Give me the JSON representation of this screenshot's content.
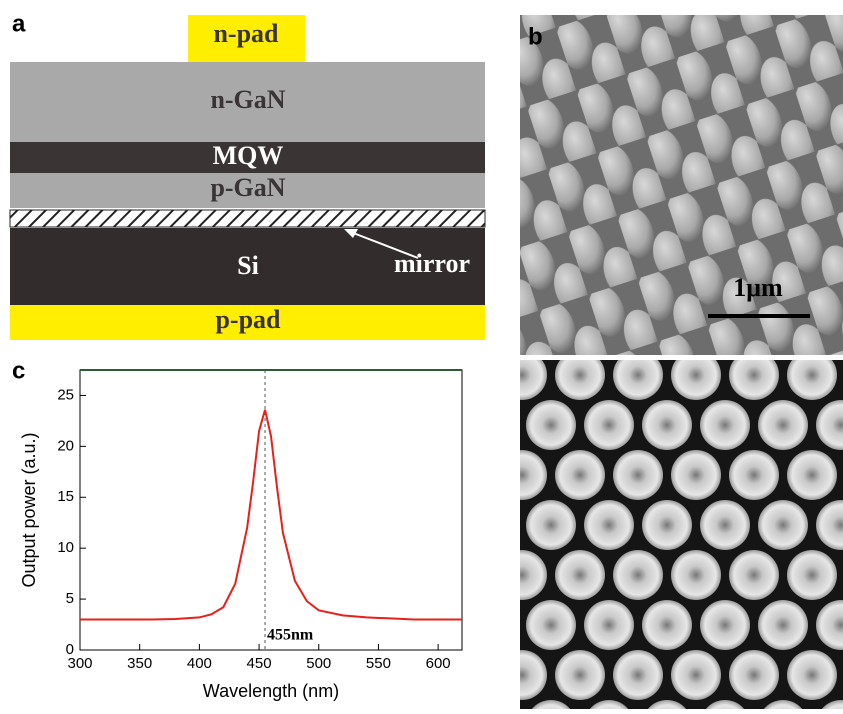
{
  "panel_labels": [
    "a",
    "b",
    "c"
  ],
  "diagram": {
    "layers": [
      "n-pad",
      "n-GaN",
      "MQW",
      "p-GaN",
      "Si",
      "p-pad"
    ],
    "mirror_label": "mirror"
  },
  "sem": {
    "scale_label": "1μm"
  },
  "chart_data": {
    "type": "line",
    "xlabel": "Wavelength (nm)",
    "ylabel": "Output power (a.u.)",
    "x": [
      300,
      320,
      340,
      360,
      380,
      400,
      410,
      420,
      430,
      440,
      445,
      450,
      455,
      460,
      465,
      470,
      480,
      490,
      500,
      520,
      540,
      560,
      580,
      600,
      620
    ],
    "values": [
      3.0,
      3.0,
      3.0,
      3.0,
      3.05,
      3.2,
      3.5,
      4.2,
      6.5,
      12,
      16.5,
      21.5,
      23.6,
      21,
      16,
      11.5,
      6.8,
      4.8,
      3.9,
      3.4,
      3.2,
      3.1,
      3.0,
      3.0,
      3.0
    ],
    "color": "#e8201a",
    "xlim": [
      300,
      620
    ],
    "ylim": [
      0,
      27.5
    ],
    "xticks": [
      300,
      350,
      400,
      450,
      500,
      550,
      600
    ],
    "yticks": [
      0,
      5,
      10,
      15,
      20,
      25
    ],
    "annotation": {
      "x": 455,
      "label": "455nm"
    }
  }
}
